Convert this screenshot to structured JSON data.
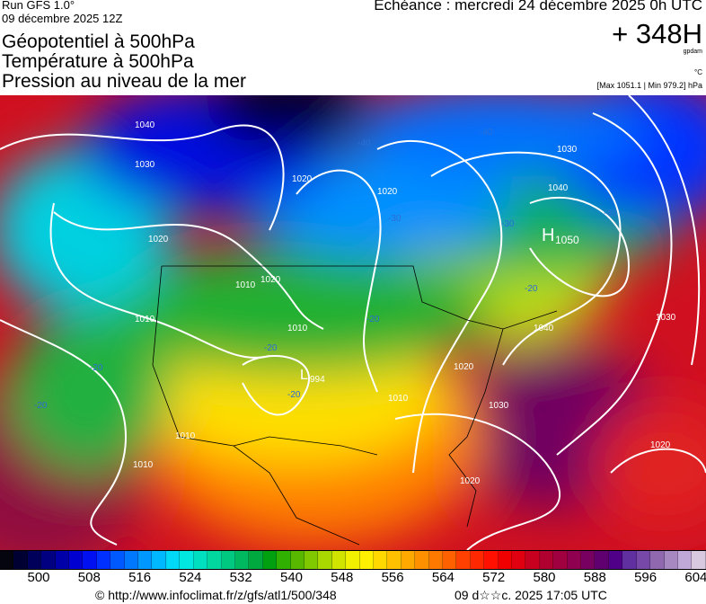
{
  "header": {
    "run": "Run GFS 1.0°",
    "run_date": "09 décembre 2025 12Z",
    "titles": [
      "Géopotentiel à 500hPa",
      "Température à 500hPa",
      "Pression au niveau de la mer"
    ],
    "echeance": "Echéance : mercredi 24 décembre 2025 0h UTC",
    "lead": "+ 348H",
    "unit_geo": "gpdam",
    "unit_temp": "°C",
    "maxmin": "[Max 1051.1 | Min 979.2] hPa"
  },
  "map": {
    "high": {
      "letter": "H",
      "value": "1050"
    },
    "low": {
      "letter": "L",
      "value": "994"
    },
    "isobar_labels": [
      "1040",
      "1030",
      "1020",
      "1020",
      "1020",
      "1010",
      "1020",
      "1010",
      "1010",
      "1030",
      "1040",
      "1030",
      "1040",
      "1020",
      "1010",
      "1030",
      "1020",
      "1020",
      "1010",
      "1010"
    ],
    "temp_labels": [
      "-40",
      "-40",
      "-40",
      "-30",
      "-30",
      "-20",
      "-20",
      "-20",
      "-20",
      "-20",
      "-20"
    ]
  },
  "colorbar": {
    "ticks": [
      "500",
      "508",
      "516",
      "524",
      "532",
      "540",
      "548",
      "556",
      "564",
      "572",
      "580",
      "588",
      "596",
      "604"
    ],
    "colors": [
      "#05050f",
      "#000033",
      "#00005a",
      "#000080",
      "#0000a8",
      "#0000d0",
      "#0010f0",
      "#0030ff",
      "#0058ff",
      "#0078ff",
      "#0098ff",
      "#00b8ff",
      "#00d8f8",
      "#00e8e0",
      "#00e0c0",
      "#00d8a0",
      "#00c880",
      "#00b860",
      "#00a840",
      "#00a010",
      "#30b000",
      "#58b800",
      "#80c800",
      "#a8d800",
      "#d0e400",
      "#f0f000",
      "#fff000",
      "#ffd800",
      "#ffc000",
      "#ffa800",
      "#ff9000",
      "#ff7800",
      "#ff6000",
      "#ff4000",
      "#ff2800",
      "#ff1000",
      "#f00000",
      "#e00010",
      "#c80020",
      "#b00030",
      "#a00040",
      "#900050",
      "#780060",
      "#600070",
      "#500088",
      "#6030a0",
      "#7848a8",
      "#9068b0",
      "#a888c0",
      "#c0a8d8",
      "#d8c8e0"
    ],
    "copyright": "© http://www.infoclimat.fr/z/gfs/atl1/500/348",
    "generated": "09 d☆☆c. 2025 17:05 UTC"
  }
}
